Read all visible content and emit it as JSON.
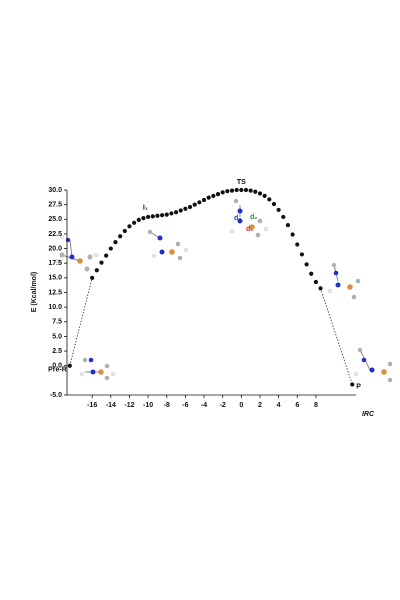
{
  "chart_data": {
    "type": "scatter",
    "ylabel": "E (Kcal/mol)",
    "xlabel": "IRC",
    "xlim": [
      -18.7,
      12.3
    ],
    "ylim": [
      -5,
      30
    ],
    "xticks": [
      -16,
      -14,
      -12,
      -10,
      -8,
      -6,
      -4,
      -2,
      0,
      2,
      4,
      6,
      8
    ],
    "yticks": [
      {
        "value": -5,
        "label": "-5.0"
      },
      {
        "value": 0,
        "label": "0.0"
      },
      {
        "value": 2.5,
        "label": "2.5"
      },
      {
        "value": 5,
        "label": "5.0"
      },
      {
        "value": 7.5,
        "label": "7.5"
      },
      {
        "value": 10,
        "label": "10.0"
      },
      {
        "value": 12.5,
        "label": "12.5"
      },
      {
        "value": 15,
        "label": "15.0"
      },
      {
        "value": 17.5,
        "label": "17.5"
      },
      {
        "value": 20,
        "label": "20.0"
      },
      {
        "value": 22.5,
        "label": "22.5"
      },
      {
        "value": 25,
        "label": "25.0"
      },
      {
        "value": 27.5,
        "label": "27.5"
      },
      {
        "value": 30,
        "label": "30.0"
      }
    ],
    "color": "#111111",
    "x": [
      -16,
      -15.5,
      -15,
      -14.5,
      -14,
      -13.5,
      -13,
      -12.5,
      -12,
      -11.5,
      -11,
      -10.5,
      -10,
      -9.5,
      -9,
      -8.5,
      -8,
      -7.5,
      -7,
      -6.5,
      -6,
      -5.5,
      -5,
      -4.5,
      -4,
      -3.5,
      -3,
      -2.5,
      -2,
      -1.5,
      -1,
      -0.5,
      0,
      0.5,
      1,
      1.5,
      2,
      2.5,
      3,
      3.5,
      4,
      4.5,
      5,
      5.5,
      6,
      6.5,
      7,
      7.5,
      8,
      8.5
    ],
    "values": [
      15.0,
      16.3,
      17.6,
      18.8,
      20.0,
      21.1,
      22.1,
      23.0,
      23.8,
      24.4,
      24.9,
      25.2,
      25.4,
      25.5,
      25.6,
      25.7,
      25.8,
      26.0,
      26.2,
      26.5,
      26.8,
      27.1,
      27.5,
      27.9,
      28.3,
      28.7,
      29.0,
      29.3,
      29.6,
      29.8,
      29.9,
      30.0,
      30.0,
      30.0,
      29.9,
      29.7,
      29.4,
      29.0,
      28.4,
      27.6,
      26.6,
      25.4,
      24.0,
      22.4,
      20.7,
      19.0,
      17.3,
      15.7,
      14.3,
      13.2
    ],
    "endpoints": [
      {
        "label": "Pre-R",
        "x": -18.4,
        "y": 0
      },
      {
        "label": "P",
        "x": 11.9,
        "y": -3.2
      }
    ],
    "annotations": [
      {
        "text": "I₁",
        "x": -10.3,
        "y": 27
      },
      {
        "text": "TS",
        "x": 0,
        "y": 31.3
      }
    ],
    "distance_labels": [
      {
        "text": "d₁",
        "color": "#d62020"
      },
      {
        "text": "d₂",
        "color": "#1a9a1a"
      },
      {
        "text": "d₃",
        "color": "#1f3fd0"
      }
    ]
  }
}
